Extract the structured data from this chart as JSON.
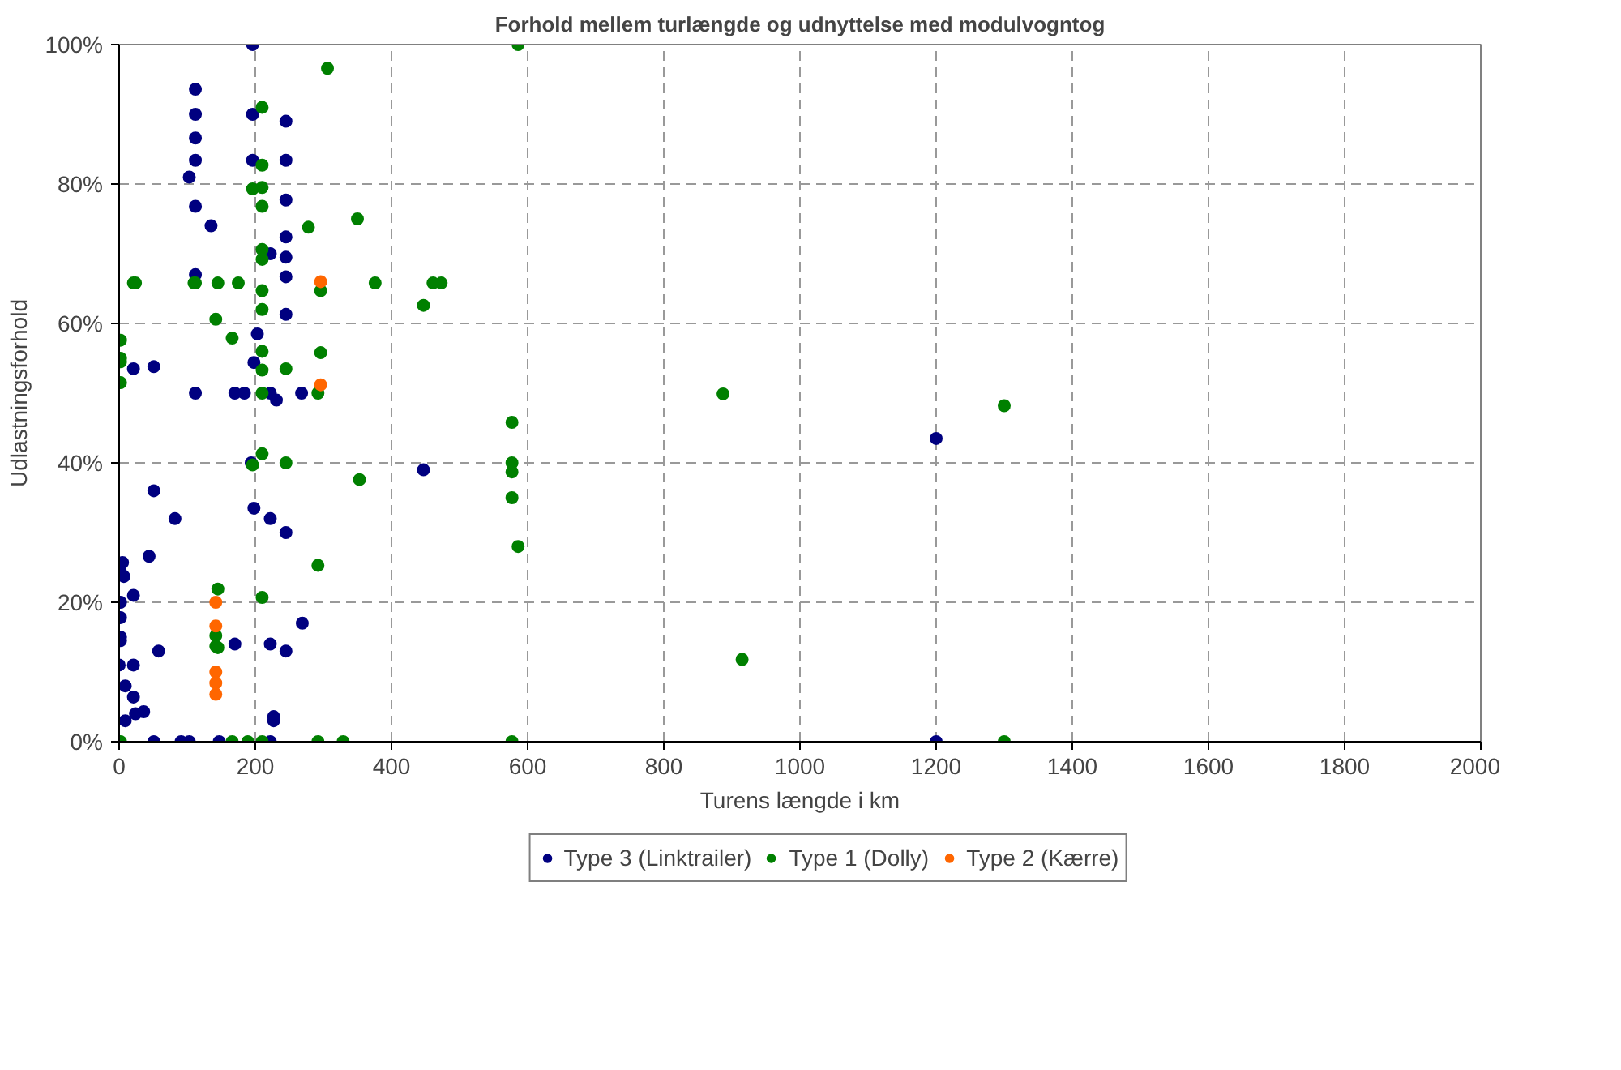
{
  "chart_data": {
    "type": "scatter",
    "title": "Forhold mellem turlængde og udnyttelse med modulvogntog",
    "xlabel": "Turens længde i km",
    "ylabel": "Udlastningsforhold",
    "xlim": [
      0,
      2000
    ],
    "xticks": [
      0,
      200,
      400,
      600,
      800,
      1000,
      1200,
      1400,
      1600,
      1800,
      2000
    ],
    "ylim": [
      0,
      100
    ],
    "yticks": [
      {
        "value": 0,
        "label": "0%"
      },
      {
        "value": 20,
        "label": "20%"
      },
      {
        "value": 40,
        "label": "40%"
      },
      {
        "value": 60,
        "label": "60%"
      },
      {
        "value": 80,
        "label": "80%"
      },
      {
        "value": 100,
        "label": "100%"
      }
    ],
    "grid": true,
    "legend": "bottom",
    "marker": "circle",
    "series": [
      {
        "name": "Type 3 (Linktrailer)",
        "color": "#000080",
        "x": [
          196,
          112,
          112,
          196,
          245,
          112,
          112,
          196,
          245,
          103,
          245,
          112,
          135,
          245,
          222,
          245,
          245,
          112,
          245,
          203,
          198,
          21,
          51,
          112,
          170,
          184,
          222,
          231,
          268,
          194,
          51,
          198,
          222,
          245,
          82,
          44,
          5,
          2,
          7,
          21,
          2,
          2,
          2,
          2,
          269,
          170,
          222,
          245,
          58,
          0,
          21,
          9,
          21,
          24,
          36,
          9,
          227,
          227,
          51,
          91,
          103,
          147,
          222,
          447,
          1200,
          1200
        ],
        "values": [
          100,
          93.6,
          90,
          90,
          89,
          86.6,
          83.4,
          83.4,
          83.4,
          81,
          77.7,
          76.8,
          74,
          72.4,
          70,
          69.5,
          66.7,
          67,
          61.3,
          58.5,
          54.4,
          53.5,
          53.8,
          50,
          50,
          50,
          50,
          49,
          50,
          40,
          36,
          33.5,
          32,
          30,
          32,
          26.6,
          25.7,
          24.3,
          23.7,
          21,
          20,
          17.8,
          15,
          14.5,
          17,
          14,
          14,
          13,
          13,
          11,
          11,
          8,
          6.4,
          4,
          4.3,
          3,
          3.6,
          3,
          0,
          0,
          0,
          0,
          0,
          39,
          43.5,
          0
        ]
      },
      {
        "name": "Type 1 (Dolly)",
        "color": "#008000",
        "x": [
          306,
          210,
          210,
          196,
          210,
          210,
          350,
          278,
          210,
          210,
          21,
          24,
          110,
          112,
          145,
          175,
          376,
          296,
          210,
          210,
          142,
          2,
          166,
          210,
          296,
          2,
          2,
          210,
          245,
          2,
          210,
          292,
          210,
          196,
          245,
          353,
          292,
          145,
          210,
          142,
          142,
          145,
          2,
          166,
          189,
          210,
          292,
          329,
          586,
          461,
          473,
          447,
          577,
          577,
          577,
          577,
          586,
          887,
          915,
          577,
          1300,
          1300
        ],
        "values": [
          96.6,
          91,
          82.7,
          79.3,
          79.5,
          76.8,
          75,
          73.8,
          70.6,
          69.2,
          65.8,
          65.8,
          65.8,
          65.8,
          65.8,
          65.8,
          65.8,
          64.7,
          64.7,
          62,
          60.6,
          57.6,
          57.9,
          56,
          55.8,
          55,
          54.5,
          53.3,
          53.5,
          51.5,
          50,
          50,
          41.3,
          39.7,
          40,
          37.6,
          25.3,
          21.9,
          20.7,
          15.2,
          13.7,
          13.5,
          0,
          0,
          0,
          0,
          0,
          0,
          100,
          65.8,
          65.8,
          62.6,
          45.8,
          40,
          38.7,
          35,
          28,
          49.9,
          11.8,
          0,
          48.2,
          0
        ]
      },
      {
        "name": "Type 2 (Kærre)",
        "color": "#ff6600",
        "x": [
          296,
          296,
          142,
          142,
          142,
          142,
          142
        ],
        "values": [
          66,
          51.2,
          20,
          16.6,
          10,
          8.4,
          6.8
        ]
      }
    ]
  }
}
